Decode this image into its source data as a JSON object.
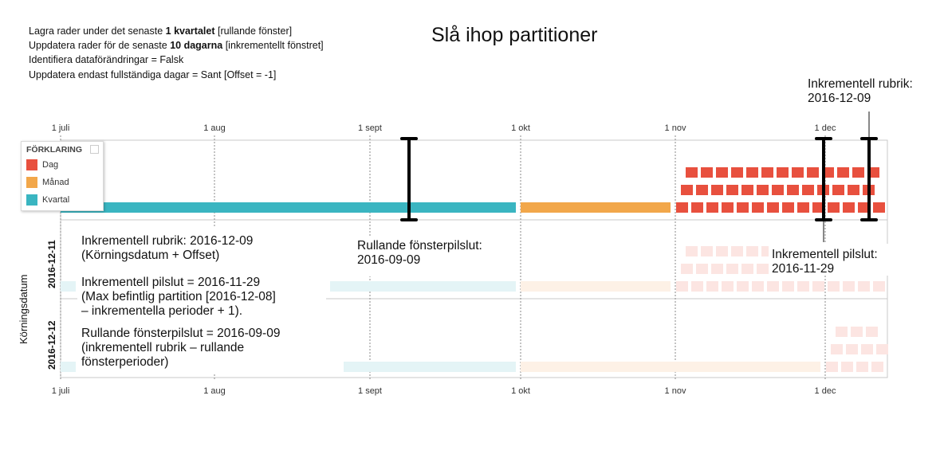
{
  "header_lines": [
    {
      "pre": "Lagra rader under det senaste ",
      "bold": "1 kvartalet",
      "post": " [rullande fönster]"
    },
    {
      "pre": "Uppdatera rader för de senaste ",
      "bold": "10 dagarna",
      "post": " [inkrementellt fönstret]"
    },
    {
      "pre": "Identifiera dataförändringar = Falsk",
      "bold": "",
      "post": ""
    },
    {
      "pre": "Uppdatera endast fullständiga dagar = Sant [Offset = -1]",
      "bold": "",
      "post": ""
    }
  ],
  "title": "Slå ihop partitioner",
  "axis_ticks": [
    "1 juli",
    "1 aug",
    "1 sept",
    "1 okt",
    "1 nov",
    "1 dec"
  ],
  "y_axis_label": "Körningsdatum",
  "rows": [
    "2016-12-11",
    "2016-12-12"
  ],
  "legend": {
    "title": "FÖRKLARING",
    "items": [
      {
        "label": "Dag",
        "color": "#e8503e"
      },
      {
        "label": "Månad",
        "color": "#f2a74a"
      },
      {
        "label": "Kvartal",
        "color": "#3ab5c1"
      }
    ]
  },
  "colors": {
    "day": "#e8503e",
    "month": "#f2a74a",
    "quarter": "#3ab5c1",
    "day_faded": "#fce5e2",
    "month_faded": "#fdf1e6",
    "quarter_faded": "#e4f4f6",
    "grid": "#8a8a8a",
    "marker": "#000000"
  },
  "annotations": {
    "incremental_header_top": "Inkrementell rubrik:\n2016-12-09",
    "incremental_end_right": "Inkrementell pilslut:\n2016-11-29",
    "rolling_end": "Rullande fönsterpilslut:\n2016-09-09",
    "note_header": "Inkrementell rubrik: 2016-12-09\n(Körningsdatum + Offset)",
    "note_incremental": "Inkrementell pilslut = 2016-11-29\n(Max befintlig partition [2016-12-08]\n– inkrementella perioder + 1).",
    "note_rolling": "Rullande fönsterpilslut = 2016-09-09\n(inkrementell rubrik – rullande\nfönsterperioder)"
  }
}
